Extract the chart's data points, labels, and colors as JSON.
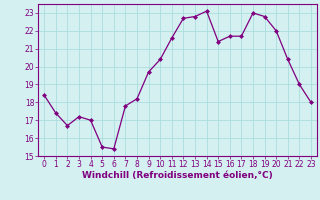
{
  "x": [
    0,
    1,
    2,
    3,
    4,
    5,
    6,
    7,
    8,
    9,
    10,
    11,
    12,
    13,
    14,
    15,
    16,
    17,
    18,
    19,
    20,
    21,
    22,
    23
  ],
  "y": [
    18.4,
    17.4,
    16.7,
    17.2,
    17.0,
    15.5,
    15.4,
    17.8,
    18.2,
    19.7,
    20.4,
    21.6,
    22.7,
    22.8,
    23.1,
    21.4,
    21.7,
    21.7,
    23.0,
    22.8,
    22.0,
    20.4,
    19.0,
    18.0
  ],
  "line_color": "#800080",
  "marker": "D",
  "marker_size": 2,
  "bg_color": "#d4f0f0",
  "grid_color": "#aadddd",
  "xlabel": "Windchill (Refroidissement éolien,°C)",
  "ylim": [
    15,
    23.5
  ],
  "yticks": [
    15,
    16,
    17,
    18,
    19,
    20,
    21,
    22,
    23
  ],
  "xlim": [
    -0.5,
    23.5
  ],
  "xticks": [
    0,
    1,
    2,
    3,
    4,
    5,
    6,
    7,
    8,
    9,
    10,
    11,
    12,
    13,
    14,
    15,
    16,
    17,
    18,
    19,
    20,
    21,
    22,
    23
  ],
  "tick_fontsize": 5.5,
  "xlabel_fontsize": 6.5,
  "tick_color": "#800080",
  "spine_color": "#800080"
}
